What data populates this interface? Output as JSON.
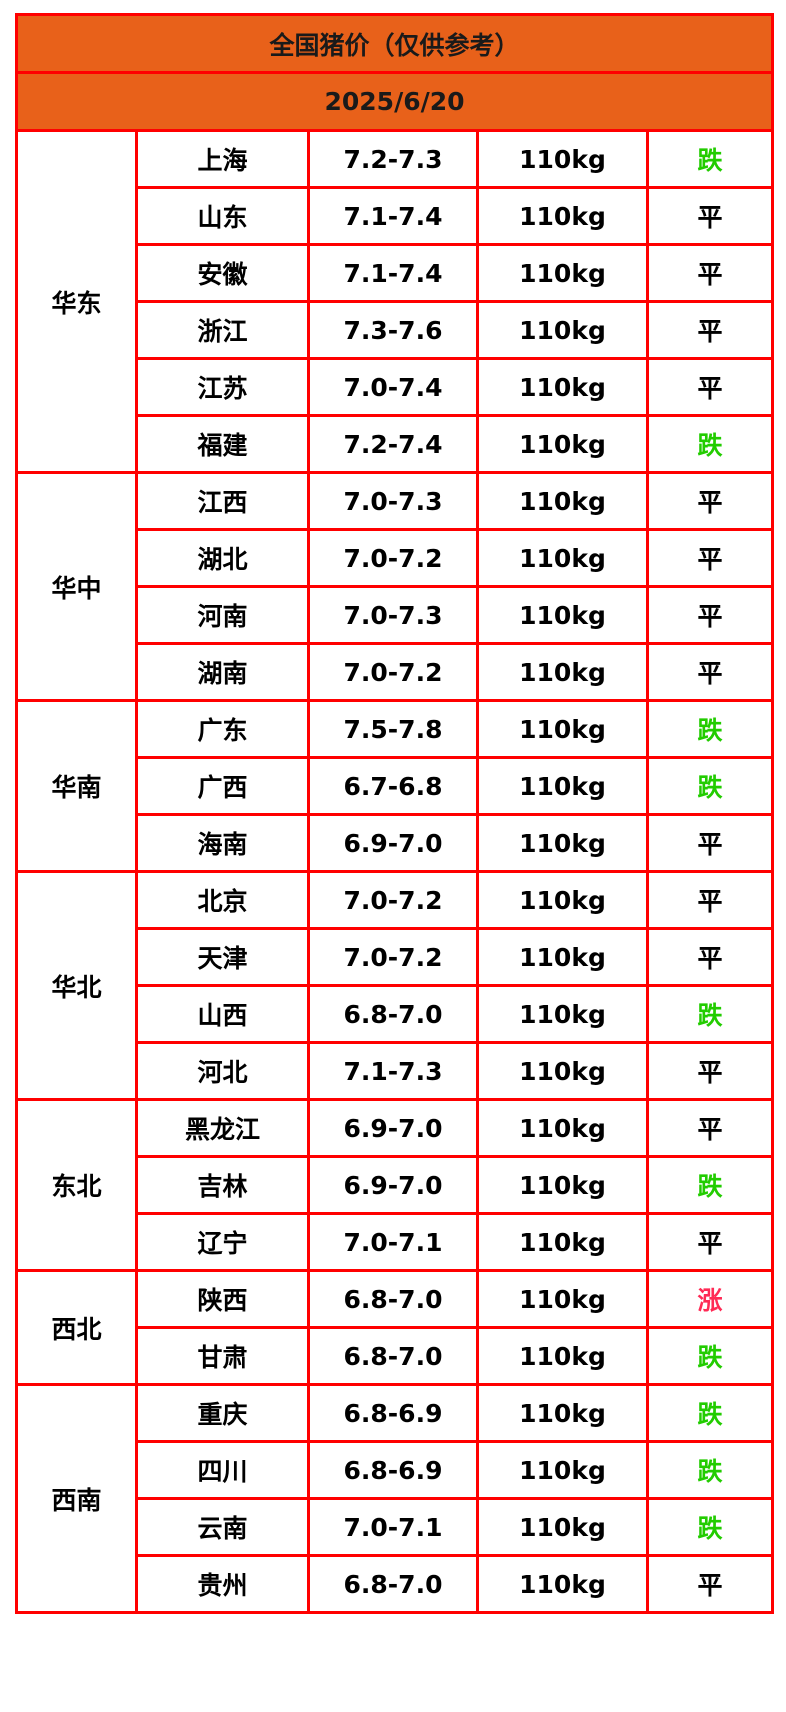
{
  "title": "全国猪价（仅供参考）",
  "date": "2025/6/20",
  "colors": {
    "header_bg": "#e8611a",
    "border": "#ff0000",
    "down": "#22cc00",
    "up": "#ff2a55",
    "flat": "#000000"
  },
  "regions": [
    {
      "name": "华东",
      "rows": [
        {
          "province": "上海",
          "price": "7.2-7.3",
          "weight": "110kg",
          "trend": "跌"
        },
        {
          "province": "山东",
          "price": "7.1-7.4",
          "weight": "110kg",
          "trend": "平"
        },
        {
          "province": "安徽",
          "price": "7.1-7.4",
          "weight": "110kg",
          "trend": "平"
        },
        {
          "province": "浙江",
          "price": "7.3-7.6",
          "weight": "110kg",
          "trend": "平"
        },
        {
          "province": "江苏",
          "price": "7.0-7.4",
          "weight": "110kg",
          "trend": "平"
        },
        {
          "province": "福建",
          "price": "7.2-7.4",
          "weight": "110kg",
          "trend": "跌"
        }
      ]
    },
    {
      "name": "华中",
      "rows": [
        {
          "province": "江西",
          "price": "7.0-7.3",
          "weight": "110kg",
          "trend": "平"
        },
        {
          "province": "湖北",
          "price": "7.0-7.2",
          "weight": "110kg",
          "trend": "平"
        },
        {
          "province": "河南",
          "price": "7.0-7.3",
          "weight": "110kg",
          "trend": "平"
        },
        {
          "province": "湖南",
          "price": "7.0-7.2",
          "weight": "110kg",
          "trend": "平"
        }
      ]
    },
    {
      "name": "华南",
      "rows": [
        {
          "province": "广东",
          "price": "7.5-7.8",
          "weight": "110kg",
          "trend": "跌"
        },
        {
          "province": "广西",
          "price": "6.7-6.8",
          "weight": "110kg",
          "trend": "跌"
        },
        {
          "province": "海南",
          "price": "6.9-7.0",
          "weight": "110kg",
          "trend": "平"
        }
      ]
    },
    {
      "name": "华北",
      "rows": [
        {
          "province": "北京",
          "price": "7.0-7.2",
          "weight": "110kg",
          "trend": "平"
        },
        {
          "province": "天津",
          "price": "7.0-7.2",
          "weight": "110kg",
          "trend": "平"
        },
        {
          "province": "山西",
          "price": "6.8-7.0",
          "weight": "110kg",
          "trend": "跌"
        },
        {
          "province": "河北",
          "price": "7.1-7.3",
          "weight": "110kg",
          "trend": "平"
        }
      ]
    },
    {
      "name": "东北",
      "rows": [
        {
          "province": "黑龙江",
          "price": "6.9-7.0",
          "weight": "110kg",
          "trend": "平"
        },
        {
          "province": "吉林",
          "price": "6.9-7.0",
          "weight": "110kg",
          "trend": "跌"
        },
        {
          "province": "辽宁",
          "price": "7.0-7.1",
          "weight": "110kg",
          "trend": "平"
        }
      ]
    },
    {
      "name": "西北",
      "rows": [
        {
          "province": "陕西",
          "price": "6.8-7.0",
          "weight": "110kg",
          "trend": "涨"
        },
        {
          "province": "甘肃",
          "price": "6.8-7.0",
          "weight": "110kg",
          "trend": "跌"
        }
      ]
    },
    {
      "name": "西南",
      "rows": [
        {
          "province": "重庆",
          "price": "6.8-6.9",
          "weight": "110kg",
          "trend": "跌"
        },
        {
          "province": "四川",
          "price": "6.8-6.9",
          "weight": "110kg",
          "trend": "跌"
        },
        {
          "province": "云南",
          "price": "7.0-7.1",
          "weight": "110kg",
          "trend": "跌"
        },
        {
          "province": "贵州",
          "price": "6.8-7.0",
          "weight": "110kg",
          "trend": "平"
        }
      ]
    }
  ]
}
